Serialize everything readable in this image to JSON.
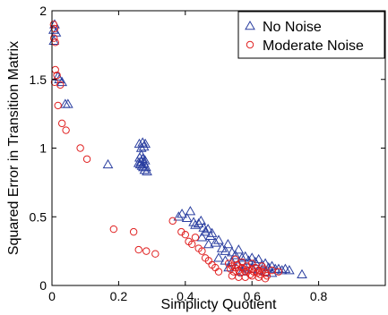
{
  "chart_data": {
    "type": "scatter",
    "xlabel": "Simplicty Quotient",
    "ylabel": "Squared Error in Transition Matrix",
    "xlim": [
      0,
      1
    ],
    "ylim": [
      0,
      2
    ],
    "xticks": [
      0,
      0.2,
      0.4,
      0.6,
      0.8
    ],
    "yticks": [
      0,
      0.5,
      1,
      1.5,
      2
    ],
    "xtick_labels": [
      "0",
      "0.2",
      "0.4",
      "0.6",
      "0.8"
    ],
    "ytick_labels": [
      "0",
      "0.5",
      "1",
      "1.5",
      "2"
    ],
    "legend_position": "top-right",
    "grid": false,
    "series": [
      {
        "name": "No Noise",
        "marker": "triangle",
        "color": "#2b3fa0",
        "points": [
          [
            0.005,
            1.86
          ],
          [
            0.008,
            1.9
          ],
          [
            0.012,
            1.84
          ],
          [
            0.006,
            1.78
          ],
          [
            0.018,
            1.52
          ],
          [
            0.022,
            1.5
          ],
          [
            0.03,
            1.48
          ],
          [
            0.04,
            1.32
          ],
          [
            0.048,
            1.32
          ],
          [
            0.168,
            0.88
          ],
          [
            0.262,
            1.03
          ],
          [
            0.268,
            1.0
          ],
          [
            0.272,
            1.04
          ],
          [
            0.276,
            1.01
          ],
          [
            0.28,
            1.03
          ],
          [
            0.263,
            0.93
          ],
          [
            0.267,
            0.9
          ],
          [
            0.272,
            0.92
          ],
          [
            0.276,
            0.89
          ],
          [
            0.279,
            0.91
          ],
          [
            0.265,
            0.88
          ],
          [
            0.27,
            0.87
          ],
          [
            0.274,
            0.86
          ],
          [
            0.278,
            0.84
          ],
          [
            0.282,
            0.86
          ],
          [
            0.285,
            0.83
          ],
          [
            0.268,
            0.95
          ],
          [
            0.26,
            0.89
          ],
          [
            0.38,
            0.5
          ],
          [
            0.39,
            0.52
          ],
          [
            0.405,
            0.49
          ],
          [
            0.415,
            0.54
          ],
          [
            0.425,
            0.46
          ],
          [
            0.43,
            0.44
          ],
          [
            0.44,
            0.45
          ],
          [
            0.447,
            0.47
          ],
          [
            0.455,
            0.42
          ],
          [
            0.46,
            0.39
          ],
          [
            0.468,
            0.41
          ],
          [
            0.475,
            0.36
          ],
          [
            0.48,
            0.38
          ],
          [
            0.49,
            0.31
          ],
          [
            0.5,
            0.33
          ],
          [
            0.51,
            0.27
          ],
          [
            0.52,
            0.25
          ],
          [
            0.528,
            0.3
          ],
          [
            0.54,
            0.24
          ],
          [
            0.55,
            0.22
          ],
          [
            0.56,
            0.26
          ],
          [
            0.57,
            0.2
          ],
          [
            0.58,
            0.21
          ],
          [
            0.59,
            0.18
          ],
          [
            0.6,
            0.2
          ],
          [
            0.61,
            0.17
          ],
          [
            0.62,
            0.19
          ],
          [
            0.63,
            0.15
          ],
          [
            0.64,
            0.16
          ],
          [
            0.65,
            0.13
          ],
          [
            0.66,
            0.14
          ],
          [
            0.67,
            0.12
          ],
          [
            0.68,
            0.12
          ],
          [
            0.69,
            0.11
          ],
          [
            0.7,
            0.12
          ],
          [
            0.712,
            0.11
          ],
          [
            0.75,
            0.08
          ],
          [
            0.5,
            0.2
          ],
          [
            0.52,
            0.18
          ],
          [
            0.54,
            0.17
          ],
          [
            0.56,
            0.15
          ],
          [
            0.58,
            0.13
          ],
          [
            0.6,
            0.12
          ],
          [
            0.62,
            0.11
          ],
          [
            0.64,
            0.1
          ],
          [
            0.66,
            0.09
          ],
          [
            0.53,
            0.13
          ],
          [
            0.57,
            0.1
          ],
          [
            0.45,
            0.35
          ],
          [
            0.47,
            0.3
          ]
        ]
      },
      {
        "name": "Moderate Noise",
        "marker": "circle",
        "color": "#e02020",
        "points": [
          [
            0.005,
            1.9
          ],
          [
            0.008,
            1.87
          ],
          [
            0.006,
            1.8
          ],
          [
            0.01,
            1.77
          ],
          [
            0.01,
            1.57
          ],
          [
            0.015,
            1.53
          ],
          [
            0.008,
            1.48
          ],
          [
            0.025,
            1.46
          ],
          [
            0.018,
            1.31
          ],
          [
            0.03,
            1.18
          ],
          [
            0.042,
            1.13
          ],
          [
            0.085,
            1.0
          ],
          [
            0.105,
            0.92
          ],
          [
            0.185,
            0.41
          ],
          [
            0.245,
            0.39
          ],
          [
            0.26,
            0.26
          ],
          [
            0.283,
            0.25
          ],
          [
            0.31,
            0.23
          ],
          [
            0.362,
            0.47
          ],
          [
            0.388,
            0.39
          ],
          [
            0.4,
            0.37
          ],
          [
            0.41,
            0.32
          ],
          [
            0.42,
            0.3
          ],
          [
            0.43,
            0.35
          ],
          [
            0.44,
            0.27
          ],
          [
            0.45,
            0.25
          ],
          [
            0.46,
            0.2
          ],
          [
            0.47,
            0.18
          ],
          [
            0.48,
            0.15
          ],
          [
            0.49,
            0.13
          ],
          [
            0.5,
            0.1
          ],
          [
            0.53,
            0.16
          ],
          [
            0.535,
            0.12
          ],
          [
            0.54,
            0.14
          ],
          [
            0.545,
            0.1
          ],
          [
            0.55,
            0.13
          ],
          [
            0.555,
            0.15
          ],
          [
            0.56,
            0.11
          ],
          [
            0.565,
            0.09
          ],
          [
            0.57,
            0.13
          ],
          [
            0.575,
            0.12
          ],
          [
            0.58,
            0.1
          ],
          [
            0.585,
            0.14
          ],
          [
            0.59,
            0.11
          ],
          [
            0.595,
            0.08
          ],
          [
            0.6,
            0.12
          ],
          [
            0.605,
            0.1
          ],
          [
            0.61,
            0.13
          ],
          [
            0.615,
            0.09
          ],
          [
            0.62,
            0.11
          ],
          [
            0.625,
            0.08
          ],
          [
            0.63,
            0.1
          ],
          [
            0.635,
            0.12
          ],
          [
            0.64,
            0.09
          ],
          [
            0.645,
            0.07
          ],
          [
            0.54,
            0.07
          ],
          [
            0.56,
            0.06
          ],
          [
            0.58,
            0.06
          ],
          [
            0.6,
            0.07
          ],
          [
            0.62,
            0.06
          ],
          [
            0.64,
            0.05
          ],
          [
            0.55,
            0.19
          ],
          [
            0.57,
            0.17
          ],
          [
            0.6,
            0.16
          ],
          [
            0.63,
            0.14
          ],
          [
            0.66,
            0.11
          ],
          [
            0.68,
            0.1
          ]
        ]
      }
    ]
  }
}
